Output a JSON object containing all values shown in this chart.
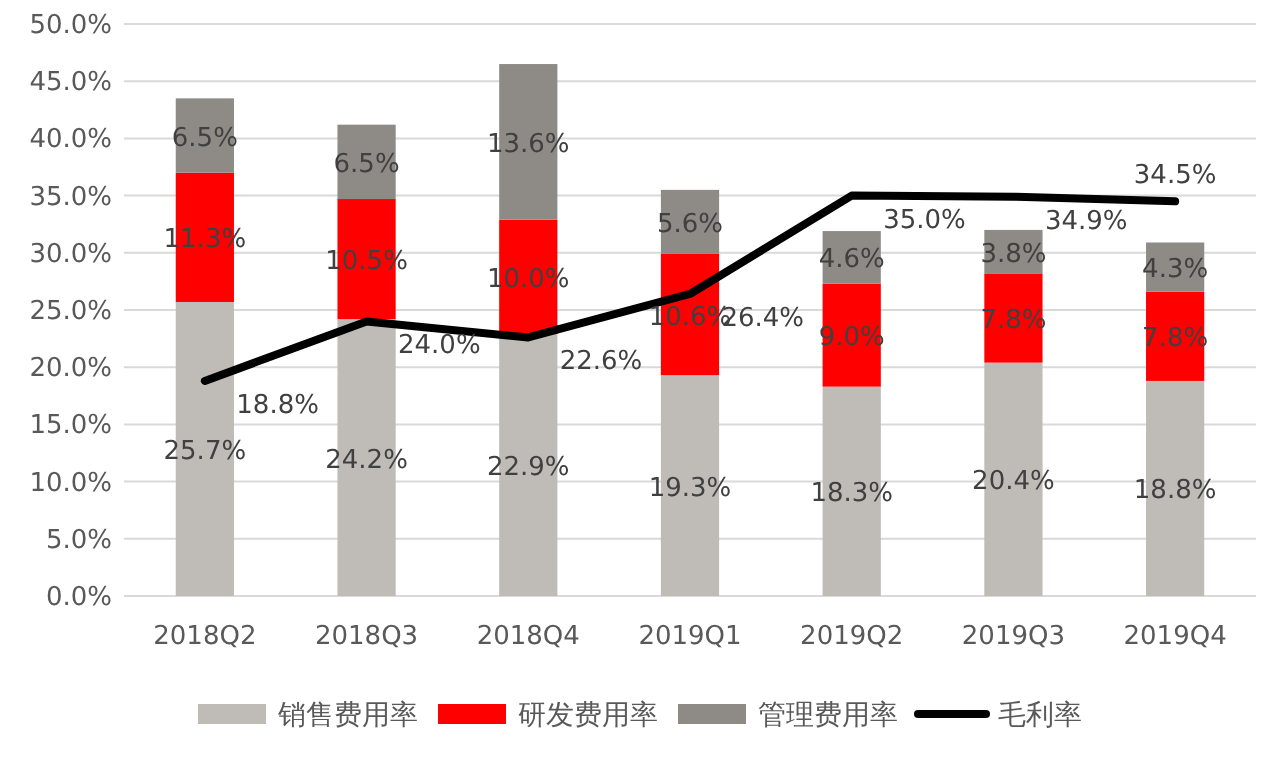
{
  "chart_data": {
    "type": "bar",
    "stacked": true,
    "categories": [
      "2018Q2",
      "2018Q3",
      "2018Q4",
      "2019Q1",
      "2019Q2",
      "2019Q3",
      "2019Q4"
    ],
    "series": [
      {
        "name": "销售费用率",
        "color": "#bfbcb7",
        "values": [
          25.7,
          24.2,
          22.9,
          19.3,
          18.3,
          20.4,
          18.8
        ],
        "value_labels": [
          "25.7%",
          "24.2%",
          "22.9%",
          "19.3%",
          "18.3%",
          "20.4%",
          "18.8%"
        ]
      },
      {
        "name": "研发费用率",
        "color": "#ff0000",
        "values": [
          11.3,
          10.5,
          10.0,
          10.6,
          9.0,
          7.8,
          7.8
        ],
        "value_labels": [
          "11.3%",
          "10.5%",
          "10.0%",
          "10.6%",
          "9.0%",
          "7.8%",
          "7.8%"
        ]
      },
      {
        "name": "管理费用率",
        "color": "#8e8b87",
        "values": [
          6.5,
          6.5,
          13.6,
          5.6,
          4.6,
          3.8,
          4.3
        ],
        "value_labels": [
          "6.5%",
          "6.5%",
          "13.6%",
          "5.6%",
          "4.6%",
          "3.8%",
          "4.3%"
        ]
      },
      {
        "name": "毛利率",
        "type": "line",
        "color": "#000000",
        "values": [
          18.8,
          24.0,
          22.6,
          26.4,
          35.0,
          34.9,
          34.5
        ],
        "value_labels": [
          "18.8%",
          "24.0%",
          "22.6%",
          "26.4%",
          "35.0%",
          "34.9%",
          "34.5%"
        ]
      }
    ],
    "ylim": [
      0,
      50
    ],
    "yticks": [
      {
        "value": 0,
        "label": "0.0%"
      },
      {
        "value": 5,
        "label": "5.0%"
      },
      {
        "value": 10,
        "label": "10.0%"
      },
      {
        "value": 15,
        "label": "15.0%"
      },
      {
        "value": 20,
        "label": "20.0%"
      },
      {
        "value": 25,
        "label": "25.0%"
      },
      {
        "value": 30,
        "label": "30.0%"
      },
      {
        "value": 35,
        "label": "35.0%"
      },
      {
        "value": 40,
        "label": "40.0%"
      },
      {
        "value": 45,
        "label": "45.0%"
      },
      {
        "value": 50,
        "label": "50.0%"
      }
    ],
    "grid": "y",
    "legend": "bottom",
    "marker": "none",
    "line_style": "solid"
  }
}
